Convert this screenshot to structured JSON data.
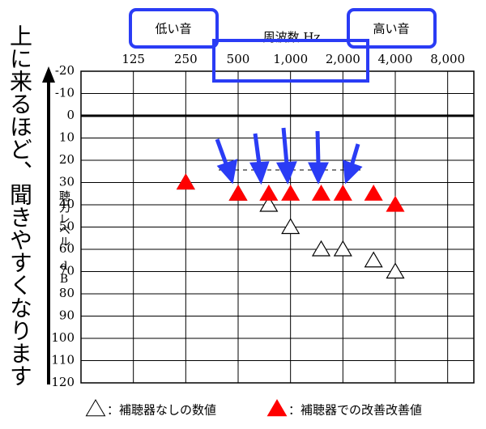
{
  "chart_data": {
    "type": "scatter",
    "x_label": "周波数 Hz",
    "y_label": "聴力レベル dB",
    "annotations": [
      "低い音",
      "高い音",
      "上に来るほど、聞きやすくなります"
    ],
    "x": [
      250,
      500,
      750,
      1000,
      1500,
      2000,
      3000,
      4000
    ],
    "series": [
      {
        "name": "：補聴器なしの数値",
        "color": "#ffffff",
        "values": [
          30,
          35,
          40,
          50,
          60,
          60,
          65,
          70
        ]
      },
      {
        "name": "：補聴器での改善改善値",
        "color": "#ff0000",
        "values": [
          30,
          35,
          35,
          35,
          35,
          35,
          35,
          40
        ]
      }
    ],
    "log_x": true,
    "xlim": [
      62.5,
      11314
    ],
    "xticks": [
      125,
      250,
      500,
      {
        "value": 1000,
        "label": "1,000"
      },
      {
        "value": 2000,
        "label": "2,000"
      },
      {
        "value": 4000,
        "label": "4,000"
      },
      {
        "value": 8000,
        "label": "8,000"
      }
    ],
    "ylim": [
      -20,
      120
    ],
    "yticks": [
      -20,
      -10,
      0,
      10,
      20,
      30,
      40,
      50,
      60,
      70,
      80,
      90,
      100,
      110,
      120
    ],
    "grid": true
  }
}
